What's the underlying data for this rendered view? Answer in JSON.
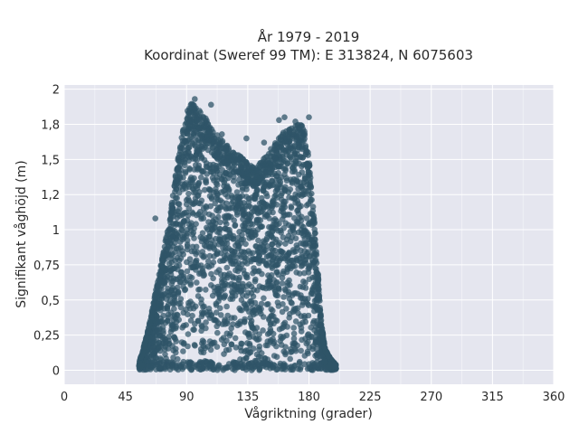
{
  "chart_data": {
    "type": "scatter",
    "title": "År 1979 - 2019",
    "subtitle": "Koordinat (Sweref 99 TM): E 313824, N 6075603",
    "xlabel": "Vågriktning (grader)",
    "ylabel": "Signifikant våghöjd (m)",
    "xlim": [
      0,
      360
    ],
    "ylim": [
      -0.1,
      2.03
    ],
    "x_ticks": [
      0,
      45,
      90,
      135,
      180,
      225,
      270,
      315,
      360
    ],
    "x_tick_labels": [
      "0",
      "45",
      "90",
      "135",
      "180",
      "225",
      "270",
      "315",
      "360"
    ],
    "y_ticks": [
      0,
      0.25,
      0.5,
      0.75,
      1,
      1.25,
      1.5,
      1.75,
      2
    ],
    "y_tick_labels": [
      "0",
      "0,25",
      "0,5",
      "0,75",
      "1",
      "1,2",
      "1,5",
      "1,8",
      "2"
    ],
    "grid": true,
    "marker_color": "#2f5468",
    "background_color": "#e5e6ef",
    "envelope": {
      "x": [
        55,
        58,
        62,
        66,
        70,
        74,
        78,
        82,
        85,
        88,
        91,
        94,
        97,
        100,
        103,
        106,
        110,
        114,
        118,
        122,
        126,
        130,
        134,
        138,
        142,
        146,
        150,
        154,
        158,
        162,
        166,
        170,
        174,
        177,
        180,
        183,
        186,
        189,
        192,
        196,
        200
      ],
      "upper": [
        0.05,
        0.15,
        0.3,
        0.5,
        0.7,
        0.9,
        1.1,
        1.4,
        1.6,
        1.75,
        1.88,
        1.9,
        1.88,
        1.86,
        1.82,
        1.75,
        1.7,
        1.66,
        1.62,
        1.58,
        1.55,
        1.52,
        1.48,
        1.45,
        1.46,
        1.5,
        1.55,
        1.6,
        1.66,
        1.7,
        1.72,
        1.74,
        1.76,
        1.7,
        1.5,
        1.2,
        0.8,
        0.35,
        0.15,
        0.08,
        0.04
      ]
    },
    "outliers": [
      {
        "x": 67,
        "y": 1.08
      },
      {
        "x": 96,
        "y": 1.93
      },
      {
        "x": 108,
        "y": 1.89
      },
      {
        "x": 116,
        "y": 1.68
      },
      {
        "x": 134,
        "y": 1.65
      },
      {
        "x": 158,
        "y": 1.78
      },
      {
        "x": 162,
        "y": 1.8
      },
      {
        "x": 170,
        "y": 1.77
      },
      {
        "x": 180,
        "y": 1.8
      },
      {
        "x": 147,
        "y": 1.62
      },
      {
        "x": 199,
        "y": 0.03
      }
    ]
  }
}
